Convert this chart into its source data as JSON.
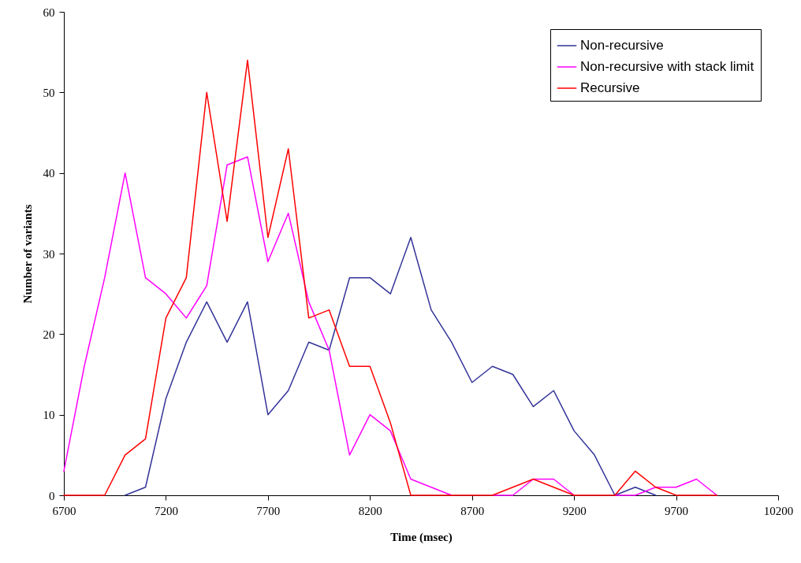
{
  "chart_data": {
    "type": "line",
    "xlabel": "Time (msec)",
    "ylabel": "Number of variants",
    "x": [
      6700,
      6800,
      6900,
      7000,
      7100,
      7200,
      7300,
      7400,
      7500,
      7600,
      7700,
      7800,
      7900,
      8000,
      8100,
      8200,
      8300,
      8400,
      8500,
      8600,
      8700,
      8800,
      8900,
      9000,
      9100,
      9200,
      9300,
      9400,
      9500,
      9600,
      9700,
      9800,
      9900
    ],
    "series": [
      {
        "name": "Non-recursive",
        "color": "#333399",
        "values": [
          null,
          null,
          null,
          0,
          1,
          12,
          19,
          24,
          19,
          24,
          10,
          13,
          19,
          18,
          27,
          27,
          25,
          32,
          23,
          19,
          14,
          16,
          15,
          11,
          13,
          8,
          5,
          0,
          1,
          0,
          null,
          null,
          null
        ]
      },
      {
        "name": "Non-recursive with stack limit",
        "color": "#ff00ff",
        "values": [
          3,
          16,
          27,
          40,
          27,
          25,
          22,
          26,
          41,
          42,
          29,
          35,
          24,
          18,
          5,
          10,
          8,
          2,
          1,
          0,
          null,
          0,
          0,
          2,
          2,
          0,
          null,
          0,
          0,
          1,
          1,
          2,
          0
        ]
      },
      {
        "name": "Recursive",
        "color": "#ff0000",
        "values": [
          0,
          0,
          0,
          5,
          7,
          22,
          27,
          50,
          34,
          54,
          32,
          43,
          22,
          23,
          16,
          16,
          9,
          0,
          0,
          0,
          0,
          0,
          1,
          2,
          1,
          0,
          0,
          0,
          3,
          1,
          0,
          0,
          0
        ]
      }
    ],
    "xlim": [
      6700,
      10200
    ],
    "xticks": [
      6700,
      7200,
      7700,
      8200,
      8700,
      9200,
      9700,
      10200
    ],
    "ylim": [
      0,
      60
    ],
    "yticks": [
      0,
      10,
      20,
      30,
      40,
      50,
      60
    ],
    "grid": false,
    "legend": "top right",
    "marker": "none",
    "line_style": "solid"
  }
}
